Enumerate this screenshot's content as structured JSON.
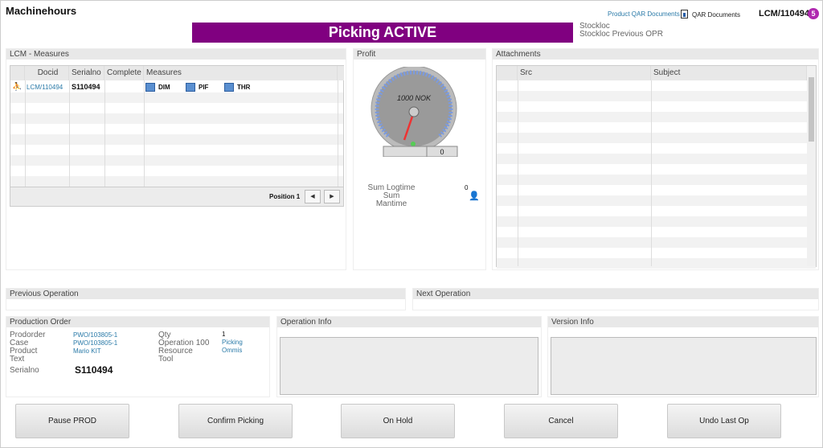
{
  "header": {
    "title": "Machinehours",
    "banner": "Picking ACTIVE",
    "stockloc": "Stockloc",
    "stockloc_prev": "Stockloc Previous OPR",
    "product_qar": "Product QAR Documents",
    "qar_docs": "QAR Documents",
    "doc_id": "LCM/110494",
    "badge": "5"
  },
  "colors": {
    "accent": "#800080",
    "link": "#2a7aa8"
  },
  "lcm": {
    "title": "LCM - Measures",
    "columns": [
      "Docid",
      "Serialno",
      "Complete",
      "Measures"
    ],
    "rows": [
      {
        "docid": "LCM/110494",
        "serialno": "S110494",
        "complete": "",
        "measures": [
          "DIM",
          "PIF",
          "THR"
        ]
      }
    ],
    "position": "Position 1"
  },
  "profit": {
    "title": "Profit",
    "gauge_unit": "1000 NOK",
    "gauge_ticks": [
      "400",
      "800",
      "1200",
      "1600",
      "2000",
      "2400"
    ],
    "gauge_value": 0,
    "readout": "0",
    "sum_logtime_label": "Sum Logtime",
    "sum_logtime": "0",
    "sum_mantime_label": "Sum Mantime"
  },
  "attachments": {
    "title": "Attachments",
    "columns": [
      "Src",
      "Subject"
    ]
  },
  "previous_operation": {
    "title": "Previous Operation"
  },
  "next_operation": {
    "title": "Next Operation"
  },
  "production_order": {
    "title": "Production Order",
    "prodorder_label": "Prodorder",
    "prodorder": "PWO/103805-1",
    "case_label": "Case",
    "case": "PWO/103805-1",
    "product_label": "Product",
    "product": "Mario KIT",
    "text_label": "Text",
    "serialno_label": "Serialno",
    "serialno": "S110494",
    "qty_label": "Qty",
    "qty": "1",
    "operation_label": "Operation 100",
    "operation": "Picking",
    "resource_label": "Resource",
    "resource": "Ommis",
    "tool_label": "Tool"
  },
  "operation_info": {
    "title": "Operation Info"
  },
  "version_info": {
    "title": "Version Info"
  },
  "buttons": {
    "pause": "Pause PROD",
    "confirm": "Confirm Picking",
    "hold": "On Hold",
    "cancel": "Cancel",
    "undo": "Undo Last Op"
  }
}
